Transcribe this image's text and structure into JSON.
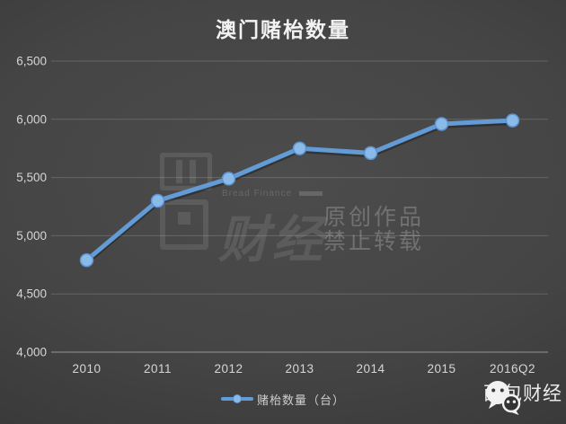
{
  "title": "澳门赌枱数量",
  "colors": {
    "background_center": "#4c4c4c",
    "background_edge": "#2a2a2a",
    "line": "#639bd6",
    "line_shadow": "rgba(0,0,0,0.30)",
    "marker_fill": "#8abbe8",
    "marker_stroke": "#5d92d1",
    "gridline": "rgba(255,255,255,0.17)",
    "axis_line": "rgba(255,255,255,0.45)",
    "tick_label": "#d6d6d6",
    "title_text": "#f2f2f2",
    "legend_text": "#cfcfcf",
    "footer_text": "#eaeaea"
  },
  "chart_data": {
    "type": "line",
    "title": "澳门赌枱数量",
    "categories": [
      "2010",
      "2011",
      "2012",
      "2013",
      "2014",
      "2015",
      "2016Q2"
    ],
    "series": [
      {
        "name": "赌枱数量（台）",
        "values": [
          4790,
          5300,
          5490,
          5750,
          5710,
          5960,
          5990
        ]
      }
    ],
    "xlabel": "",
    "ylabel": "",
    "ylim": [
      4000,
      6500
    ],
    "ytick_interval": 500,
    "ytick_labels": [
      "4,000",
      "4,500",
      "5,000",
      "5,500",
      "6,000",
      "6,500"
    ],
    "grid": true,
    "legend_position": "bottom"
  },
  "legend": {
    "label": "赌枱数量（台）"
  },
  "watermark": {
    "brand_en": "Bread Finance",
    "brand_cn": "财经",
    "logo_char_top": "面",
    "logo_char_bottom": "包",
    "notice_line1": "原创作品",
    "notice_line2": "禁止转载"
  },
  "footer": {
    "brand": "面包财经",
    "icon": "wechat-icon"
  }
}
